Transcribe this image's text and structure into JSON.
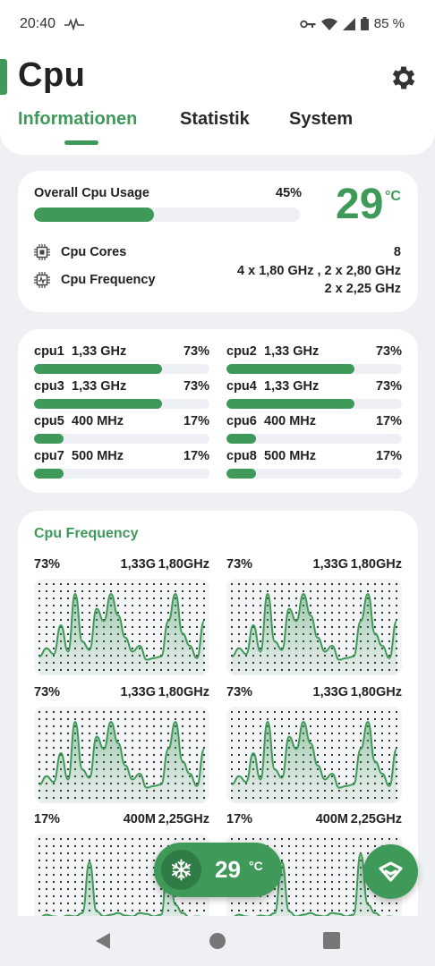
{
  "status_bar": {
    "time": "20:40",
    "battery": "85 %"
  },
  "header": {
    "title": "Cpu",
    "tabs": [
      {
        "label": "Informationen",
        "active": true
      },
      {
        "label": "Statistik",
        "active": false
      },
      {
        "label": "System",
        "active": false
      }
    ]
  },
  "overview": {
    "usage_label": "Overall Cpu Usage",
    "usage_percent": "45%",
    "usage_value": 45,
    "temperature": "29",
    "temperature_unit": "°C",
    "cores_label": "Cpu Cores",
    "cores_value": "8",
    "frequency_label": "Cpu Frequency",
    "frequency_line1": "4 x 1,80 GHz , 2 x 2,80 GHz",
    "frequency_line2": "2 x 2,25 GHz"
  },
  "cores": [
    {
      "name": "cpu1",
      "freq": "1,33 GHz",
      "percent": "73%",
      "value": 73
    },
    {
      "name": "cpu2",
      "freq": "1,33 GHz",
      "percent": "73%",
      "value": 73
    },
    {
      "name": "cpu3",
      "freq": "1,33 GHz",
      "percent": "73%",
      "value": 73
    },
    {
      "name": "cpu4",
      "freq": "1,33 GHz",
      "percent": "73%",
      "value": 73
    },
    {
      "name": "cpu5",
      "freq": "400 MHz",
      "percent": "17%",
      "value": 17
    },
    {
      "name": "cpu6",
      "freq": "400 MHz",
      "percent": "17%",
      "value": 17
    },
    {
      "name": "cpu7",
      "freq": "500 MHz",
      "percent": "17%",
      "value": 17
    },
    {
      "name": "cpu8",
      "freq": "500 MHz",
      "percent": "17%",
      "value": 17
    }
  ],
  "frequency_section": {
    "title": "Cpu Frequency",
    "charts": [
      {
        "percent": "73%",
        "current": "1,33G",
        "max": "1,80GHz",
        "profile": "big"
      },
      {
        "percent": "73%",
        "current": "1,33G",
        "max": "1,80GHz",
        "profile": "big"
      },
      {
        "percent": "73%",
        "current": "1,33G",
        "max": "1,80GHz",
        "profile": "big"
      },
      {
        "percent": "73%",
        "current": "1,33G",
        "max": "1,80GHz",
        "profile": "big"
      },
      {
        "percent": "17%",
        "current": "400M",
        "max": "2,25GHz",
        "profile": "small"
      },
      {
        "percent": "17%",
        "current": "400M",
        "max": "2,25GHz",
        "profile": "small"
      }
    ]
  },
  "floating": {
    "temperature": "29",
    "temperature_unit": "°C",
    "snow_icon": "snowflake-icon",
    "fab_icon": "chevron-down-icon"
  },
  "colors": {
    "accent": "#3f9a5a",
    "accent_dark": "#2f7c46",
    "background": "#eef0f3"
  }
}
